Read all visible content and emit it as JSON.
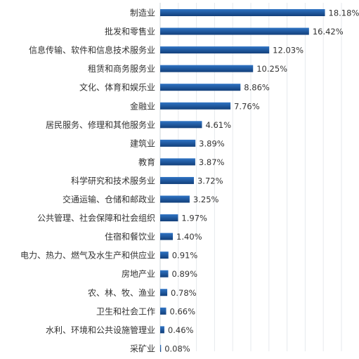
{
  "chart_data": {
    "type": "bar",
    "orientation": "horizontal",
    "categories": [
      "制造业",
      "批发和零售业",
      "信息传输、软件和信息技术服务业",
      "租赁和商务服务业",
      "文化、体育和娱乐业",
      "金融业",
      "居民服务、修理和其他服务业",
      "建筑业",
      "教育",
      "科学研究和技术服务业",
      "交通运输、仓储和邮政业",
      "公共管理、社会保障和社会组织",
      "住宿和餐饮业",
      "电力、热力、燃气及水生产和供应业",
      "房地产业",
      "农、林、牧、渔业",
      "卫生和社会工作",
      "水利、环境和公共设施管理业",
      "采矿业"
    ],
    "values": [
      18.18,
      16.42,
      12.03,
      10.25,
      8.86,
      7.76,
      4.61,
      3.89,
      3.87,
      3.72,
      3.25,
      1.97,
      1.4,
      0.91,
      0.89,
      0.78,
      0.66,
      0.46,
      0.08
    ],
    "value_labels": [
      "18.18%",
      "16.42%",
      "12.03%",
      "10.25%",
      "8.86%",
      "7.76%",
      "4.61%",
      "3.89%",
      "3.87%",
      "3.72%",
      "3.25%",
      "1.97%",
      "1.40%",
      "0.91%",
      "0.89%",
      "0.78%",
      "0.66%",
      "0.46%",
      "0.08%"
    ],
    "xlim": [
      0,
      20
    ],
    "grid": true,
    "legend": "none",
    "bar_color": "#1f5fa8",
    "bar_color_dark": "#123f7a"
  }
}
